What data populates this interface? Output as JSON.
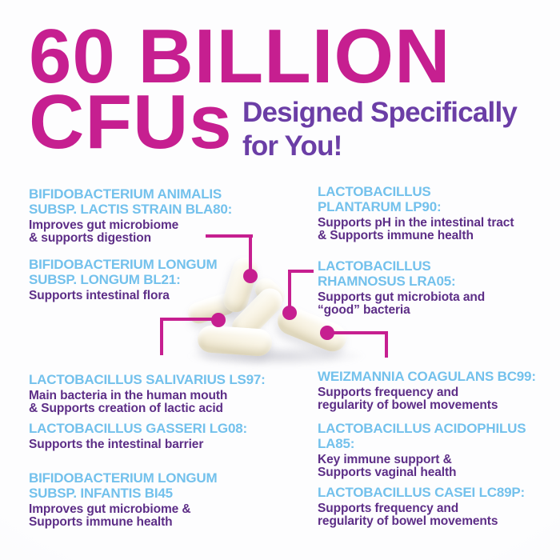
{
  "colors": {
    "accent_magenta": "#c61f90",
    "heading_cyan": "#73c1ec",
    "body_purple": "#5d2e87",
    "subtitle_purple": "#6b3ea6",
    "background": "#fbfbfd",
    "capsule_ivory": "#f8f3e4"
  },
  "header": {
    "title": "60 BILLION\nCFUs",
    "subtitle": "Designed Specifically\nfor You!"
  },
  "illustration": {
    "label": "Pile of white probiotic capsules with magenta callout markers"
  },
  "strains": {
    "left": [
      {
        "name": "BIFIDOBACTERIUM ANIMALIS\nSUBSP. LACTIS STRAIN BLA80:",
        "description": "Improves gut microbiome\n& supports digestion"
      },
      {
        "name": "BIFIDOBACTERIUM LONGUM\nSUBSP. LONGUM BL21:",
        "description": "Supports intestinal flora"
      },
      {
        "name": "LACTOBACILLUS SALIVARIUS LS97:",
        "description": "Main bacteria in the human mouth\n& Supports creation of lactic acid"
      },
      {
        "name": "LACTOBACILLUS GASSERI LG08:",
        "description": "Supports the intestinal barrier"
      },
      {
        "name": "BIFIDOBACTERIUM LONGUM\nSUBSP. INFANTIS BI45",
        "description": "Improves gut microbiome &\nSupports immune health"
      }
    ],
    "right": [
      {
        "name": "LACTOBACILLUS\nPLANTARUM LP90:",
        "description": "Supports pH in the intestinal tract\n& Supports immune health"
      },
      {
        "name": "LACTOBACILLUS\nRHAMNOSUS LRA05:",
        "description": "Supports gut microbiota and\n“good” bacteria"
      },
      {
        "name": "WEIZMANNIA COAGULANS BC99:",
        "description": "Supports frequency and\nregularity of bowel movements"
      },
      {
        "name": "LACTOBACILLUS ACIDOPHILUS\nLA85:",
        "description": "Key immune support &\nSupports vaginal health"
      },
      {
        "name": "LACTOBACILLUS CASEI LC89P:",
        "description": "Supports frequency and\nregularity of bowel movements"
      }
    ]
  }
}
